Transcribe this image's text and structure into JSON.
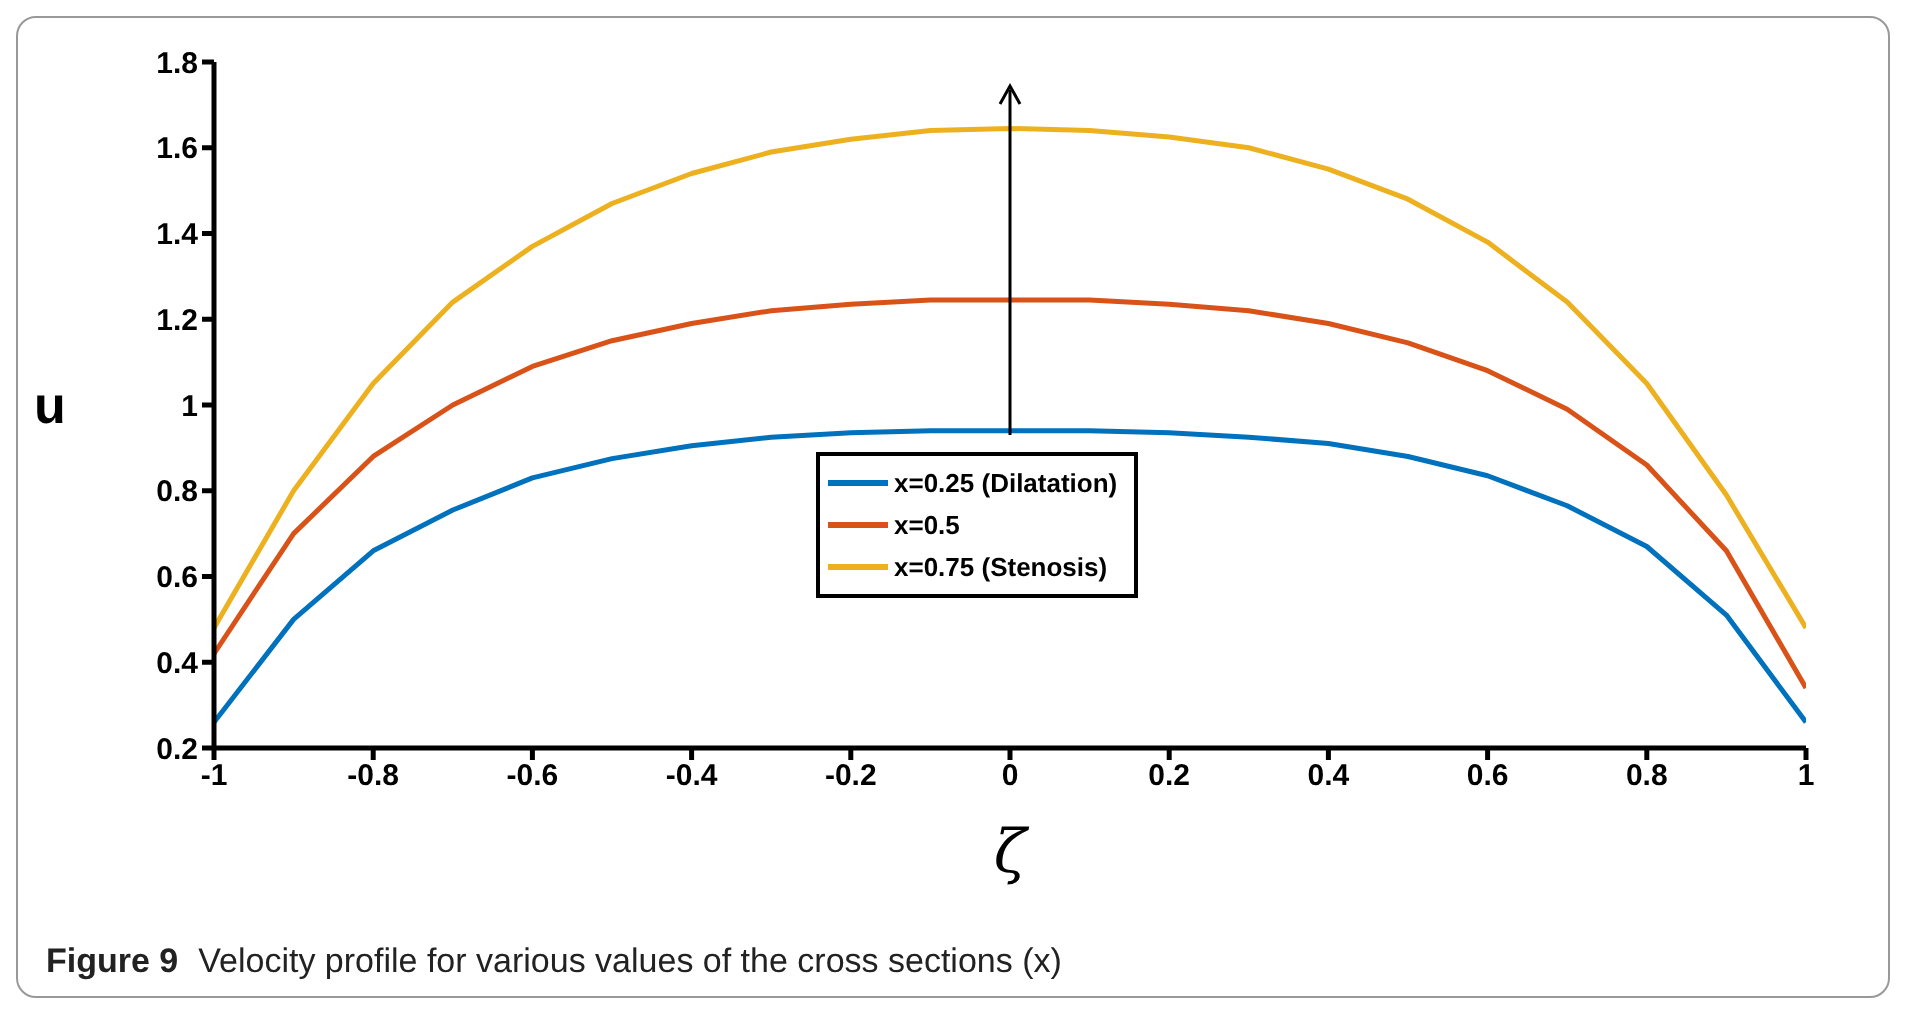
{
  "chart_data": {
    "type": "line",
    "xlabel": "ζ",
    "ylabel": "u",
    "annotations": [
      "Figure 9",
      "Velocity profile for various values of the cross sections (x)"
    ],
    "x": [
      -1,
      -0.9,
      -0.8,
      -0.7,
      -0.6,
      -0.5,
      -0.4,
      -0.3,
      -0.2,
      -0.1,
      0,
      0.1,
      0.2,
      0.3,
      0.4,
      0.5,
      0.6,
      0.7,
      0.8,
      0.9,
      1
    ],
    "series": [
      {
        "name": "x=0.25 (Dilatation)",
        "color": "#0072bd",
        "values": [
          0.26,
          0.5,
          0.66,
          0.755,
          0.83,
          0.875,
          0.905,
          0.925,
          0.935,
          0.94,
          0.94,
          0.94,
          0.935,
          0.925,
          0.91,
          0.88,
          0.835,
          0.765,
          0.67,
          0.51,
          0.26
        ]
      },
      {
        "name": "x=0.5",
        "color": "#d95319",
        "values": [
          0.42,
          0.7,
          0.88,
          1.0,
          1.09,
          1.15,
          1.19,
          1.22,
          1.235,
          1.245,
          1.245,
          1.245,
          1.235,
          1.22,
          1.19,
          1.145,
          1.08,
          0.99,
          0.86,
          0.66,
          0.34
        ]
      },
      {
        "name": "x=0.75 (Stenosis)",
        "color": "#edb120",
        "values": [
          0.48,
          0.8,
          1.05,
          1.24,
          1.37,
          1.47,
          1.54,
          1.59,
          1.62,
          1.64,
          1.645,
          1.64,
          1.625,
          1.6,
          1.55,
          1.48,
          1.38,
          1.24,
          1.05,
          0.79,
          0.48
        ]
      }
    ],
    "xlim": [
      -1,
      1
    ],
    "xticks": [
      -1,
      -0.8,
      -0.6,
      -0.4,
      -0.2,
      0,
      0.2,
      0.4,
      0.6,
      0.8,
      1
    ],
    "ylim": [
      0.2,
      1.8
    ],
    "yticks": [
      0.2,
      0.4,
      0.6,
      0.8,
      1,
      1.2,
      1.4,
      1.6,
      1.8
    ],
    "grid": false,
    "legend": "bottom",
    "marker": "none",
    "line_style": "solid"
  }
}
